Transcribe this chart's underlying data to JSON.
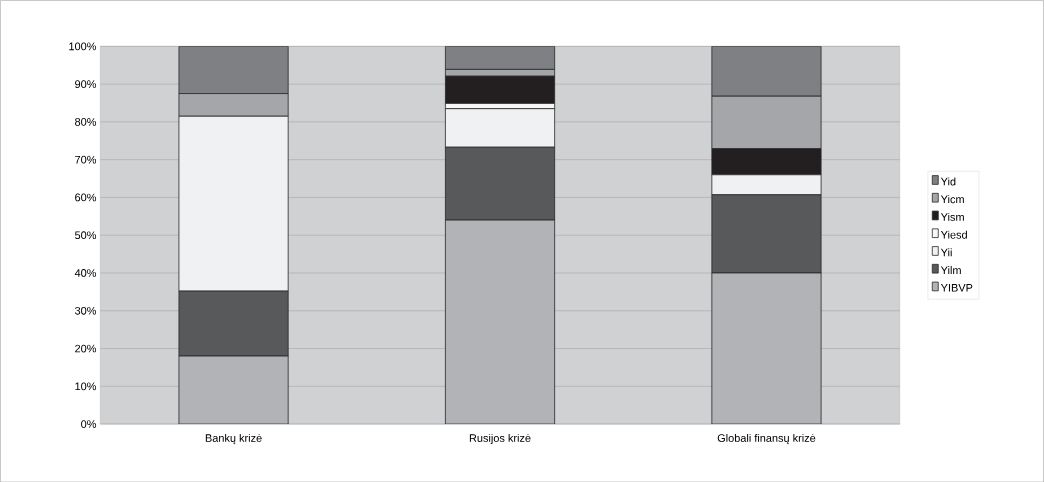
{
  "chart_data": {
    "type": "bar",
    "stacked": true,
    "categories": [
      "Bankų krizė",
      "Rusijos krizė",
      "Globali finansų krizė"
    ],
    "series": [
      {
        "name": "YIBVP",
        "color": "#b2b3b6",
        "values": [
          18,
          54,
          40
        ]
      },
      {
        "name": "Yilm",
        "color": "#58595b",
        "values": [
          17.2,
          19.3,
          20.7
        ]
      },
      {
        "name": "Yii",
        "color": "#f0f1f3",
        "values": [
          46.3,
          10.2,
          5.3
        ]
      },
      {
        "name": "Yiesd",
        "color": "#f7f7f7",
        "values": [
          0,
          1.4,
          0
        ]
      },
      {
        "name": "Yism",
        "color": "#231f20",
        "values": [
          0,
          7.2,
          6.9
        ]
      },
      {
        "name": "Yicm",
        "color": "#a5a6a9",
        "values": [
          6,
          1.8,
          13.9
        ]
      },
      {
        "name": "Yid",
        "color": "#7f8083",
        "values": [
          12.5,
          6.1,
          13.2
        ]
      }
    ],
    "ylim": [
      0,
      100
    ],
    "yticks": [
      {
        "value": 0,
        "label": "0%"
      },
      {
        "value": 10,
        "label": "10%"
      },
      {
        "value": 20,
        "label": "20%"
      },
      {
        "value": 30,
        "label": "30%"
      },
      {
        "value": 40,
        "label": "40%"
      },
      {
        "value": 50,
        "label": "50%"
      },
      {
        "value": 60,
        "label": "60%"
      },
      {
        "value": 70,
        "label": "70%"
      },
      {
        "value": 80,
        "label": "80%"
      },
      {
        "value": 90,
        "label": "90%"
      },
      {
        "value": 100,
        "label": "100%"
      }
    ],
    "grid": "y",
    "legend": "right"
  }
}
